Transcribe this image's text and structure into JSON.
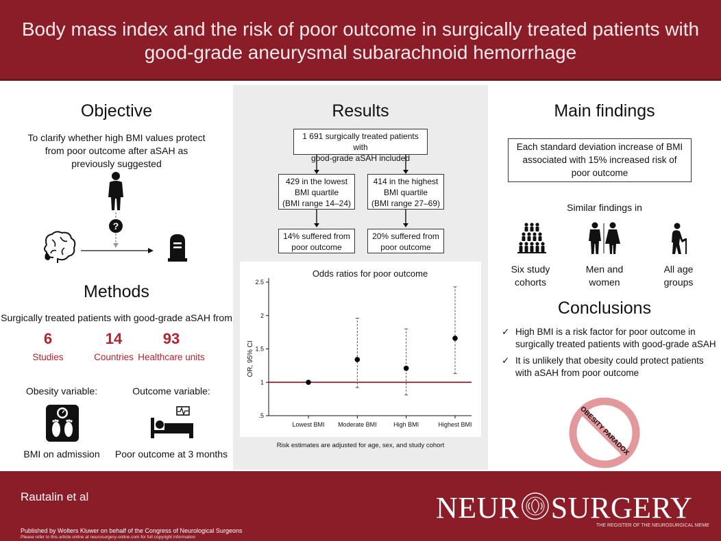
{
  "header": {
    "title_line1": "Body mass index and the risk of poor outcome in surgically treated patients with",
    "title_line2": "good-grade aneurysmal subarachnoid hemorrhage"
  },
  "objective": {
    "title": "Objective",
    "text_line1": "To clarify whether high BMI values protect",
    "text_line2": "from poor outcome after aSAH as",
    "text_line3": "previously suggested"
  },
  "methods": {
    "title": "Methods",
    "intro": "Surgically treated patients with good-grade aSAH from",
    "stats": [
      {
        "number": "6",
        "label": "Studies"
      },
      {
        "number": "14",
        "label": "Countries"
      },
      {
        "number": "93",
        "label": "Healthcare units"
      }
    ],
    "obesity_label": "Obesity variable:",
    "outcome_label": "Outcome variable:",
    "obesity_value": "BMI on admission",
    "outcome_value": "Poor outcome at 3 months"
  },
  "results": {
    "title": "Results",
    "top_box_line1": "1 691 surgically treated patients with",
    "top_box_line2": "good-grade aSAH included",
    "left_box_line1": "429 in the lowest",
    "left_box_line2": "BMI quartile",
    "left_box_line3": "(BMI range 14–24)",
    "right_box_line1": "414 in the highest",
    "right_box_line2": "BMI quartile",
    "right_box_line3": "(BMI range 27–69)",
    "left_out_line1": "14% suffered from",
    "left_out_line2": "poor outcome",
    "right_out_line1": "20% suffered from",
    "right_out_line2": "poor outcome",
    "footnote": "Risk estimates are adjusted for age, sex, and study cohort"
  },
  "chart_data": {
    "type": "scatter",
    "title": "Odds ratios for poor outcome",
    "ylabel": "OR, 95% CI",
    "xlabel": "",
    "categories": [
      "Lowest BMI",
      "Moderate BMI",
      "High BMI",
      "Highest BMI"
    ],
    "values": [
      1.0,
      1.34,
      1.21,
      1.66
    ],
    "ci_lower": [
      1.0,
      0.92,
      0.81,
      1.13
    ],
    "ci_upper": [
      1.0,
      1.96,
      1.8,
      2.43
    ],
    "reference_line": 1,
    "ylim": [
      0.5,
      2.5
    ],
    "yticks": [
      ".5",
      "1",
      "1.5",
      "2",
      "2.5"
    ],
    "ytick_values": [
      0.5,
      1,
      1.5,
      2,
      2.5
    ],
    "grid": false,
    "colors": {
      "reference": "#8a1d28",
      "points": "#000000",
      "ci": "#555555"
    }
  },
  "main_findings": {
    "title": "Main findings",
    "box_line1": "Each standard deviation increase of BMI",
    "box_line2": "associated with 15% increased risk of",
    "box_line3": "poor outcome",
    "similar": "Similar findings in",
    "groups": [
      {
        "line1": "Six study",
        "line2": "cohorts",
        "icon": "people-group-icon"
      },
      {
        "line1": "Men and",
        "line2": "women",
        "icon": "man-woman-icon"
      },
      {
        "line1": "All age",
        "line2": "groups",
        "icon": "elderly-person-icon"
      }
    ]
  },
  "conclusions": {
    "title": "Conclusions",
    "c1_line1": "High BMI is a risk factor for poor outcome in",
    "c1_line2": "surgically treated patients with good-grade aSAH",
    "c2_line1": "It is unlikely that obesity could protect patients",
    "c2_line2": "with aSAH from poor outcome",
    "check": "✓",
    "stamp": "OBESITY PARADOX"
  },
  "footer": {
    "author": "Rautalin et al",
    "brand_left": "NEUR",
    "brand_right": "SURGERY",
    "seal_text": "CONGRESS OF NEUROLOGICAL SURGEONS",
    "brand_sub": "THE REGISTER OF THE NEUROSURGICAL MEME",
    "published": "Published by Wolters Kluwer on behalf of the Congress of Neurological Surgeons",
    "note": "Please refer to this article online at neurosurgery-online.com for full copyright information"
  },
  "colors": {
    "brand": "#8a1d28",
    "accent": "#b3222f",
    "mid_panel": "#ececec"
  }
}
